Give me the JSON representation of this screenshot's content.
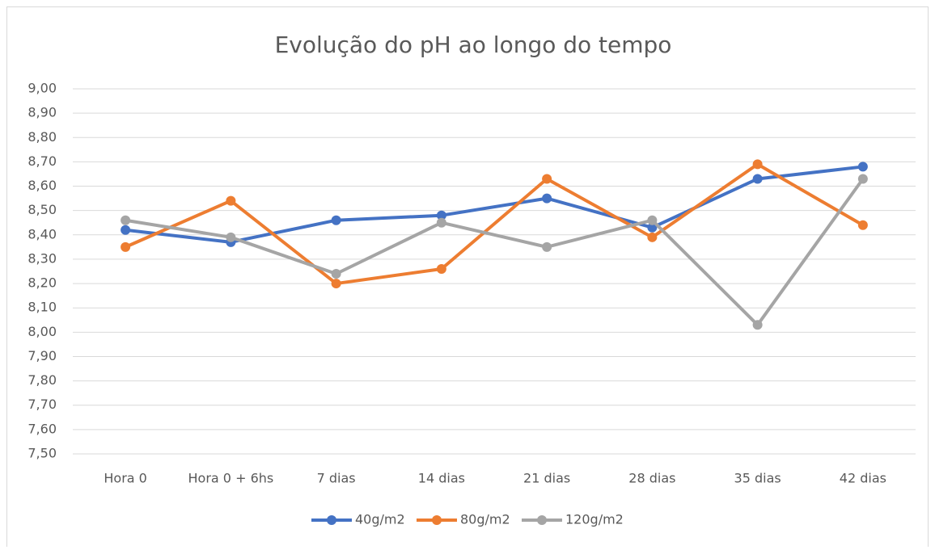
{
  "chart_data": {
    "type": "line",
    "title": "Evolução do pH ao longo do tempo",
    "categories": [
      "Hora 0",
      "Hora 0 + 6hs",
      "7 dias",
      "14 dias",
      "21 dias",
      "28 dias",
      "35 dias",
      "42 dias"
    ],
    "series": [
      {
        "name": "40g/m2",
        "color": "#4472c4",
        "values": [
          8.42,
          8.37,
          8.46,
          8.48,
          8.55,
          8.43,
          8.63,
          8.68
        ]
      },
      {
        "name": "80g/m2",
        "color": "#ed7d31",
        "values": [
          8.35,
          8.54,
          8.2,
          8.26,
          8.63,
          8.39,
          8.69,
          8.44
        ]
      },
      {
        "name": "120g/m2",
        "color": "#a5a5a5",
        "values": [
          8.46,
          8.39,
          8.24,
          8.45,
          8.35,
          8.46,
          8.03,
          8.63
        ]
      }
    ],
    "ylim": [
      7.5,
      9.0
    ],
    "yticks": [
      {
        "value": 7.5,
        "label": "7,50"
      },
      {
        "value": 7.6,
        "label": "7,60"
      },
      {
        "value": 7.7,
        "label": "7,70"
      },
      {
        "value": 7.8,
        "label": "7,80"
      },
      {
        "value": 7.9,
        "label": "7,90"
      },
      {
        "value": 8.0,
        "label": "8,00"
      },
      {
        "value": 8.1,
        "label": "8,10"
      },
      {
        "value": 8.2,
        "label": "8,20"
      },
      {
        "value": 8.3,
        "label": "8,30"
      },
      {
        "value": 8.4,
        "label": "8,40"
      },
      {
        "value": 8.5,
        "label": "8,50"
      },
      {
        "value": 8.6,
        "label": "8,60"
      },
      {
        "value": 8.7,
        "label": "8,70"
      },
      {
        "value": 8.8,
        "label": "8,80"
      },
      {
        "value": 8.9,
        "label": "8,90"
      },
      {
        "value": 9.0,
        "label": "9,00"
      }
    ],
    "grid": true,
    "legend": "bottom"
  }
}
